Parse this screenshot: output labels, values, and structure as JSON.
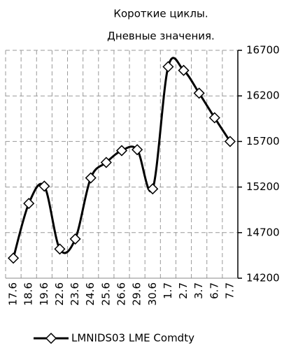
{
  "chart_data": {
    "type": "line",
    "title": [
      "Короткие циклы.",
      "Дневные значения."
    ],
    "categories": [
      "17.6",
      "18.6",
      "19.6",
      "22.6",
      "23.6",
      "24.6",
      "25.6",
      "26.6",
      "29.6",
      "30.6",
      "1.7",
      "2.7",
      "3.7",
      "6.7",
      "7.7"
    ],
    "series": [
      {
        "name": "LMNIDS03 LME Comdty",
        "color": "#000000",
        "values": [
          14420,
          15020,
          15210,
          14520,
          14630,
          15300,
          15470,
          15600,
          15610,
          15180,
          16520,
          16480,
          16230,
          15960,
          15700
        ]
      }
    ],
    "ylim": [
      14200,
      16700
    ],
    "yticks": [
      14200,
      14700,
      15200,
      15700,
      16200,
      16700
    ],
    "grid": true,
    "smooth": true,
    "legend": "bottom"
  }
}
